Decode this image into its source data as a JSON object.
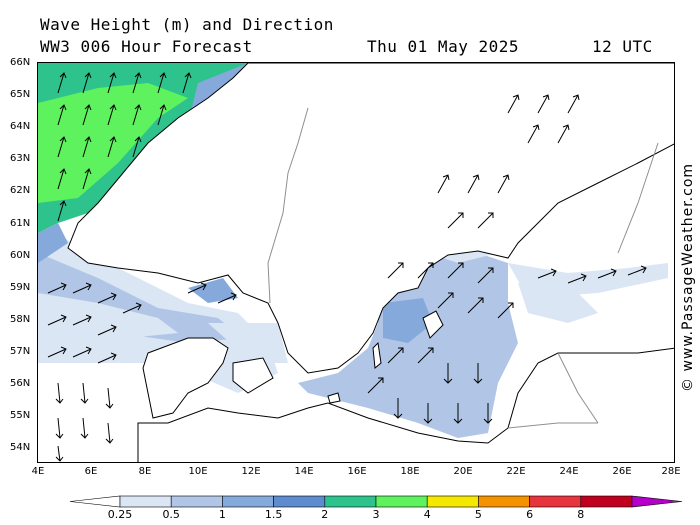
{
  "header": {
    "title": "Wave Height (m) and Direction",
    "model_line": "WW3 006 Hour Forecast",
    "date": "Thu 01 May 2025",
    "time": "12 UTC"
  },
  "credit": "© www.PassageWeather.com",
  "lat_labels": [
    "66N",
    "65N",
    "64N",
    "63N",
    "62N",
    "61N",
    "60N",
    "59N",
    "58N",
    "57N",
    "56N",
    "55N",
    "54N"
  ],
  "lon_labels": [
    "4E",
    "6E",
    "8E",
    "10E",
    "12E",
    "14E",
    "16E",
    "18E",
    "20E",
    "22E",
    "24E",
    "26E",
    "28E"
  ],
  "legend": {
    "labels": [
      "0.25",
      "0.5",
      "1",
      "1.5",
      "2",
      "3",
      "4",
      "5",
      "6",
      "8"
    ],
    "colors": [
      "#dbe6f5",
      "#b1c6e6",
      "#86a9dc",
      "#5d8ccf",
      "#2ec28c",
      "#5ef25e",
      "#f5e800",
      "#f59200",
      "#e8343d",
      "#c0001e",
      "#b400c8"
    ]
  },
  "colors": {
    "land": "#ffffff",
    "sea_calm": "#ffffff",
    "coast": "#000000",
    "border": "#8f8f8f"
  },
  "icons": {
    "wave_arrow": "arrow-icon"
  }
}
